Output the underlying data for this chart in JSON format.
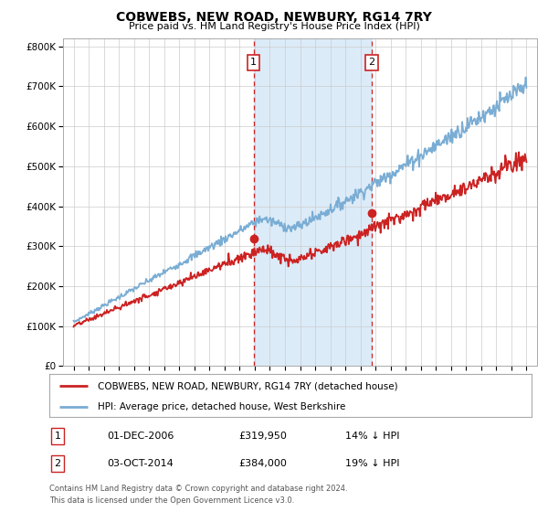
{
  "title": "COBWEBS, NEW ROAD, NEWBURY, RG14 7RY",
  "subtitle": "Price paid vs. HM Land Registry's House Price Index (HPI)",
  "hpi_color": "#7aadd4",
  "price_color": "#cc2222",
  "marker1_x": 2006.92,
  "marker1_price_y": 319950,
  "marker2_x": 2014.75,
  "marker2_price_y": 384000,
  "marker1_date": "01-DEC-2006",
  "marker1_price": "£319,950",
  "marker1_pct": "14% ↓ HPI",
  "marker2_date": "03-OCT-2014",
  "marker2_price": "£384,000",
  "marker2_pct": "19% ↓ HPI",
  "legend_line1": "COBWEBS, NEW ROAD, NEWBURY, RG14 7RY (detached house)",
  "legend_line2": "HPI: Average price, detached house, West Berkshire",
  "footer1": "Contains HM Land Registry data © Crown copyright and database right 2024.",
  "footer2": "This data is licensed under the Open Government Licence v3.0.",
  "xlim": [
    1994.3,
    2025.7
  ],
  "ylim": [
    0,
    820000
  ],
  "ytick_vals": [
    0,
    100000,
    200000,
    300000,
    400000,
    500000,
    600000,
    700000,
    800000
  ],
  "ytick_labels": [
    "£0",
    "£100K",
    "£200K",
    "£300K",
    "£400K",
    "£500K",
    "£600K",
    "£700K",
    "£800K"
  ]
}
